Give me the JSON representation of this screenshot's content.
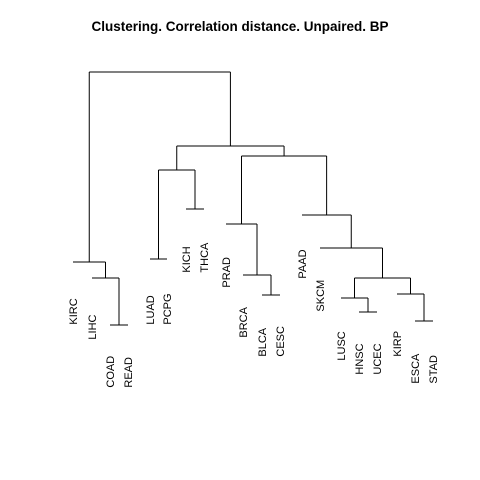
{
  "title": "Clustering. Correlation distance. Unpaired. BP",
  "leaves": [
    "KIRC",
    "LIHC",
    "COAD",
    "READ",
    "LUAD",
    "PCPG",
    "KICH",
    "THCA",
    "PRAD",
    "BRCA",
    "BLCA",
    "CESC",
    "PAAD",
    "SKCM",
    "LUSC",
    "HNSC",
    "UCEC",
    "KIRP",
    "ESCA",
    "STAD"
  ],
  "chart_data": {
    "type": "dendrogram",
    "title": "Clustering. Correlation distance. Unpaired. BP",
    "leaf_order": [
      "KIRC",
      "LIHC",
      "COAD",
      "READ",
      "LUAD",
      "PCPG",
      "KICH",
      "THCA",
      "PRAD",
      "BRCA",
      "BLCA",
      "CESC",
      "PAAD",
      "SKCM",
      "LUSC",
      "HNSC",
      "UCEC",
      "KIRP",
      "ESCA",
      "STAD"
    ],
    "axes_shown": false
  }
}
